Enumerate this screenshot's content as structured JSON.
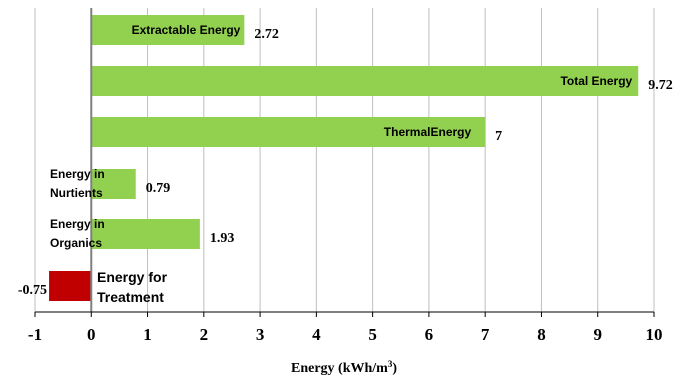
{
  "chart_data": {
    "type": "bar",
    "orientation": "horizontal",
    "categories": [
      "Extractable Energy",
      "Total Energy",
      "ThermalEnergy",
      "Energy in Nurtients",
      "Energy in Organics",
      "Energy for Treatment"
    ],
    "values": [
      2.72,
      9.72,
      7,
      0.79,
      1.93,
      -0.75
    ],
    "value_labels": [
      "2.72",
      "9.72",
      "7",
      "0.79",
      "1.93",
      "-0.75"
    ],
    "colors": [
      "#92d050",
      "#92d050",
      "#92d050",
      "#92d050",
      "#92d050",
      "#c00000"
    ],
    "xlabel": "Energy (kWh/m",
    "xlabel_superscript": "3",
    "xlabel_suffix": ")",
    "xlim": [
      -1,
      10
    ],
    "xticks": [
      "-1",
      "0",
      "1",
      "2",
      "3",
      "4",
      "5",
      "6",
      "7",
      "8",
      "9",
      "10"
    ],
    "grid": "vertical"
  }
}
